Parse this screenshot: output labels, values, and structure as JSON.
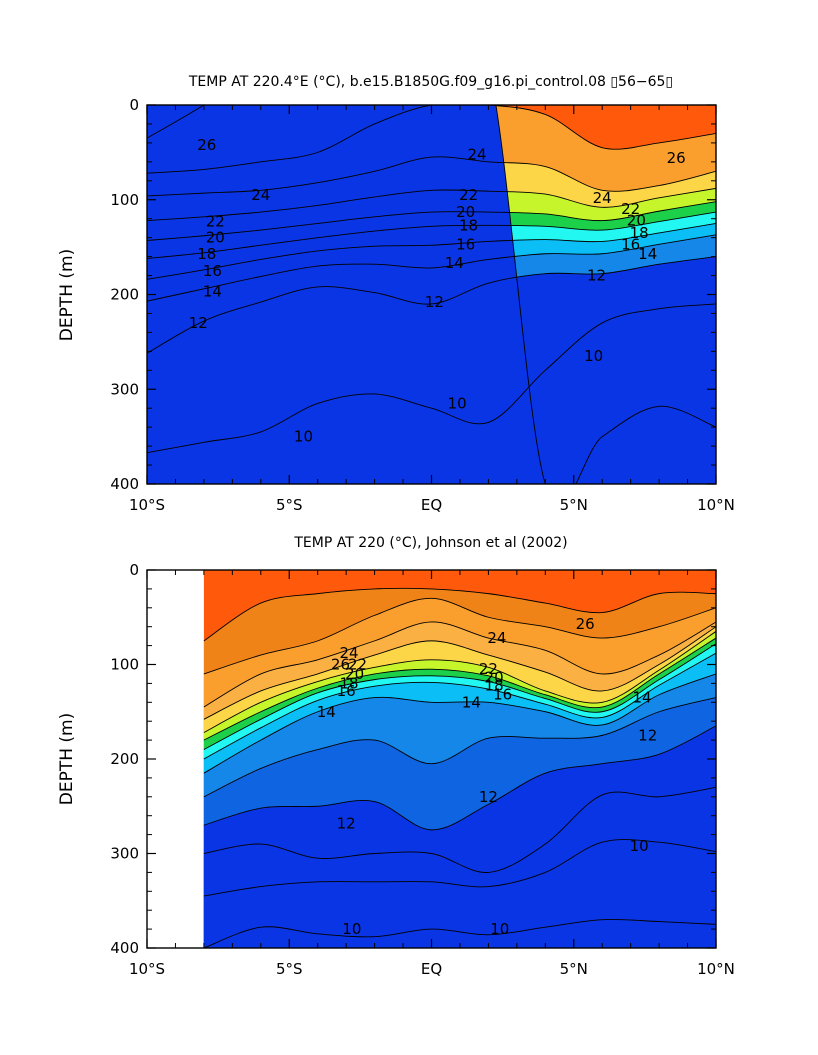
{
  "chart_data": [
    {
      "type": "contour",
      "title": "TEMP AT 220.4°E (°C), b.e15.B1850G.f09_g16.pi_control.08 ▯56−65▯",
      "ylabel": "DEPTH (m)",
      "xlabel": "",
      "x_ticks": [
        "10°S",
        "5°S",
        "EQ",
        "5°N",
        "10°N"
      ],
      "y_ticks": [
        "0",
        "100",
        "200",
        "300",
        "400"
      ],
      "xlim": [
        -10,
        10
      ],
      "ylim": [
        400,
        0
      ],
      "contour_interval": 1,
      "x_lat": [
        -10,
        -8,
        -6,
        -4,
        -2,
        0,
        2,
        4,
        6,
        8,
        10
      ],
      "isotherm_depths": [
        {
          "temp": 28,
          "depths": [
            35,
            0,
            null,
            null,
            null,
            null,
            null,
            null,
            null,
            null,
            null
          ]
        },
        {
          "temp": 26,
          "depths": [
            72,
            68,
            60,
            50,
            20,
            0,
            0,
            10,
            45,
            40,
            30
          ]
        },
        {
          "temp": 24,
          "depths": [
            96,
            93,
            90,
            82,
            70,
            55,
            60,
            65,
            90,
            85,
            70
          ]
        },
        {
          "temp": 22,
          "depths": [
            122,
            118,
            113,
            106,
            97,
            90,
            91,
            94,
            108,
            98,
            88
          ]
        },
        {
          "temp": 20,
          "depths": [
            143,
            138,
            132,
            125,
            118,
            113,
            113,
            115,
            122,
            112,
            102
          ]
        },
        {
          "temp": 18,
          "depths": [
            162,
            156,
            148,
            140,
            133,
            128,
            127,
            128,
            132,
            123,
            113
          ]
        },
        {
          "temp": 16,
          "depths": [
            184,
            174,
            163,
            154,
            149,
            148,
            144,
            142,
            144,
            135,
            125
          ]
        },
        {
          "temp": 14,
          "depths": [
            207,
            194,
            181,
            170,
            168,
            172,
            163,
            157,
            157,
            147,
            137
          ]
        },
        {
          "temp": 12,
          "depths": [
            262,
            228,
            208,
            192,
            198,
            210,
            188,
            178,
            178,
            168,
            160
          ]
        },
        {
          "temp": 10,
          "depths": [
            367,
            356,
            345,
            315,
            305,
            320,
            335,
            280,
            230,
            215,
            210
          ]
        },
        {
          "temp": 9,
          "depths": [
            null,
            null,
            null,
            null,
            null,
            null,
            null,
            400,
            350,
            318,
            340
          ]
        }
      ],
      "contour_labels": [
        {
          "value": "26",
          "lat": -7.9,
          "depth": 42
        },
        {
          "value": "24",
          "lat": 1.6,
          "depth": 52
        },
        {
          "value": "26",
          "lat": 8.6,
          "depth": 56
        },
        {
          "value": "24",
          "lat": -6.0,
          "depth": 95
        },
        {
          "value": "22",
          "lat": 1.3,
          "depth": 95
        },
        {
          "value": "24",
          "lat": 6.0,
          "depth": 98
        },
        {
          "value": "22",
          "lat": -7.6,
          "depth": 123
        },
        {
          "value": "20",
          "lat": 1.2,
          "depth": 113
        },
        {
          "value": "22",
          "lat": 7.0,
          "depth": 110
        },
        {
          "value": "20",
          "lat": -7.6,
          "depth": 140
        },
        {
          "value": "18",
          "lat": 1.3,
          "depth": 127
        },
        {
          "value": "20",
          "lat": 7.2,
          "depth": 122
        },
        {
          "value": "18",
          "lat": -7.9,
          "depth": 157
        },
        {
          "value": "16",
          "lat": 1.2,
          "depth": 147
        },
        {
          "value": "18",
          "lat": 7.3,
          "depth": 135
        },
        {
          "value": "16",
          "lat": -7.7,
          "depth": 175
        },
        {
          "value": "14",
          "lat": 0.8,
          "depth": 167
        },
        {
          "value": "16",
          "lat": 7.0,
          "depth": 147
        },
        {
          "value": "14",
          "lat": -7.7,
          "depth": 197
        },
        {
          "value": "14",
          "lat": 7.6,
          "depth": 157
        },
        {
          "value": "12",
          "lat": -8.2,
          "depth": 230
        },
        {
          "value": "12",
          "lat": 0.1,
          "depth": 208
        },
        {
          "value": "12",
          "lat": 5.8,
          "depth": 180
        },
        {
          "value": "10",
          "lat": 5.7,
          "depth": 265
        },
        {
          "value": "10",
          "lat": 0.9,
          "depth": 315
        },
        {
          "value": "10",
          "lat": -4.5,
          "depth": 350
        }
      ]
    },
    {
      "type": "contour",
      "title": "TEMP AT 220 (°C), Johnson et al (2002)",
      "ylabel": "DEPTH (m)",
      "xlabel": "",
      "x_ticks": [
        "10°S",
        "5°S",
        "EQ",
        "5°N",
        "10°N"
      ],
      "y_ticks": [
        "0",
        "100",
        "200",
        "300",
        "400"
      ],
      "xlim": [
        -10,
        10
      ],
      "ylim": [
        400,
        0
      ],
      "data_lat_range": [
        -8,
        10
      ],
      "contour_interval": 1,
      "x_lat": [
        -8,
        -6,
        -4,
        -2,
        0,
        2,
        4,
        6,
        8,
        10
      ],
      "isotherm_depths": [
        {
          "temp": 27,
          "depths": [
            75,
            35,
            25,
            20,
            20,
            25,
            35,
            45,
            25,
            25
          ]
        },
        {
          "temp": 26,
          "depths": [
            110,
            90,
            75,
            48,
            30,
            50,
            60,
            72,
            60,
            40
          ]
        },
        {
          "temp": 25,
          "depths": [
            145,
            110,
            95,
            75,
            55,
            72,
            85,
            110,
            90,
            55
          ]
        },
        {
          "temp": 24,
          "depths": [
            158,
            128,
            110,
            90,
            75,
            90,
            108,
            128,
            100,
            60
          ]
        },
        {
          "temp": 22,
          "depths": [
            172,
            140,
            118,
            103,
            95,
            103,
            128,
            140,
            106,
            65
          ]
        },
        {
          "temp": 20,
          "depths": [
            180,
            150,
            125,
            110,
            105,
            112,
            132,
            145,
            110,
            72
          ]
        },
        {
          "temp": 18,
          "depths": [
            190,
            158,
            130,
            116,
            112,
            118,
            136,
            150,
            116,
            78
          ]
        },
        {
          "temp": 16,
          "depths": [
            200,
            167,
            138,
            123,
            119,
            126,
            142,
            156,
            122,
            88
          ]
        },
        {
          "temp": 14,
          "depths": [
            215,
            180,
            150,
            135,
            140,
            140,
            150,
            164,
            132,
            110
          ]
        },
        {
          "temp": 13,
          "depths": [
            240,
            210,
            190,
            180,
            205,
            178,
            178,
            175,
            150,
            135
          ]
        },
        {
          "temp": 12,
          "depths": [
            270,
            252,
            250,
            245,
            275,
            248,
            215,
            205,
            195,
            165
          ]
        },
        {
          "temp": 11,
          "depths": [
            300,
            290,
            305,
            300,
            300,
            320,
            290,
            238,
            240,
            230
          ]
        },
        {
          "temp": 10,
          "depths": [
            345,
            335,
            330,
            330,
            330,
            335,
            320,
            288,
            288,
            298
          ]
        },
        {
          "temp": 9,
          "depths": [
            400,
            378,
            385,
            388,
            380,
            386,
            378,
            370,
            372,
            375
          ]
        }
      ],
      "contour_labels": [
        {
          "value": "26",
          "lat": -3.2,
          "depth": 100
        },
        {
          "value": "24",
          "lat": -2.9,
          "depth": 88
        },
        {
          "value": "22",
          "lat": -2.6,
          "depth": 100
        },
        {
          "value": "20",
          "lat": -2.7,
          "depth": 110
        },
        {
          "value": "18",
          "lat": -2.9,
          "depth": 120
        },
        {
          "value": "16",
          "lat": -3.0,
          "depth": 128
        },
        {
          "value": "14",
          "lat": -3.7,
          "depth": 150
        },
        {
          "value": "24",
          "lat": 2.3,
          "depth": 72
        },
        {
          "value": "26",
          "lat": 5.4,
          "depth": 57
        },
        {
          "value": "22",
          "lat": 2.0,
          "depth": 105
        },
        {
          "value": "20",
          "lat": 2.2,
          "depth": 114
        },
        {
          "value": "18",
          "lat": 2.2,
          "depth": 122
        },
        {
          "value": "16",
          "lat": 2.5,
          "depth": 132
        },
        {
          "value": "14",
          "lat": 1.4,
          "depth": 140
        },
        {
          "value": "12",
          "lat": 2.0,
          "depth": 240
        },
        {
          "value": "12",
          "lat": -3.0,
          "depth": 268
        },
        {
          "value": "12",
          "lat": 7.6,
          "depth": 175
        },
        {
          "value": "14",
          "lat": 7.4,
          "depth": 135
        },
        {
          "value": "10",
          "lat": 7.3,
          "depth": 292
        },
        {
          "value": "10",
          "lat": 2.4,
          "depth": 380
        },
        {
          "value": "10",
          "lat": -2.8,
          "depth": 380
        }
      ]
    }
  ],
  "colors": {
    "palette_warm_to_cold": [
      "#e32b14",
      "#ff5a0c",
      "#ef8317",
      "#fa9f2e",
      "#fbb043",
      "#fcd647",
      "#fdfd3c",
      "#c6f52c",
      "#6ee42a",
      "#1dd04a",
      "#23e8a4",
      "#22f7f2",
      "#0fd9f7",
      "#0bbef5",
      "#1aa4f4",
      "#1487e9",
      "#0f64e2",
      "#0a35e5"
    ]
  }
}
